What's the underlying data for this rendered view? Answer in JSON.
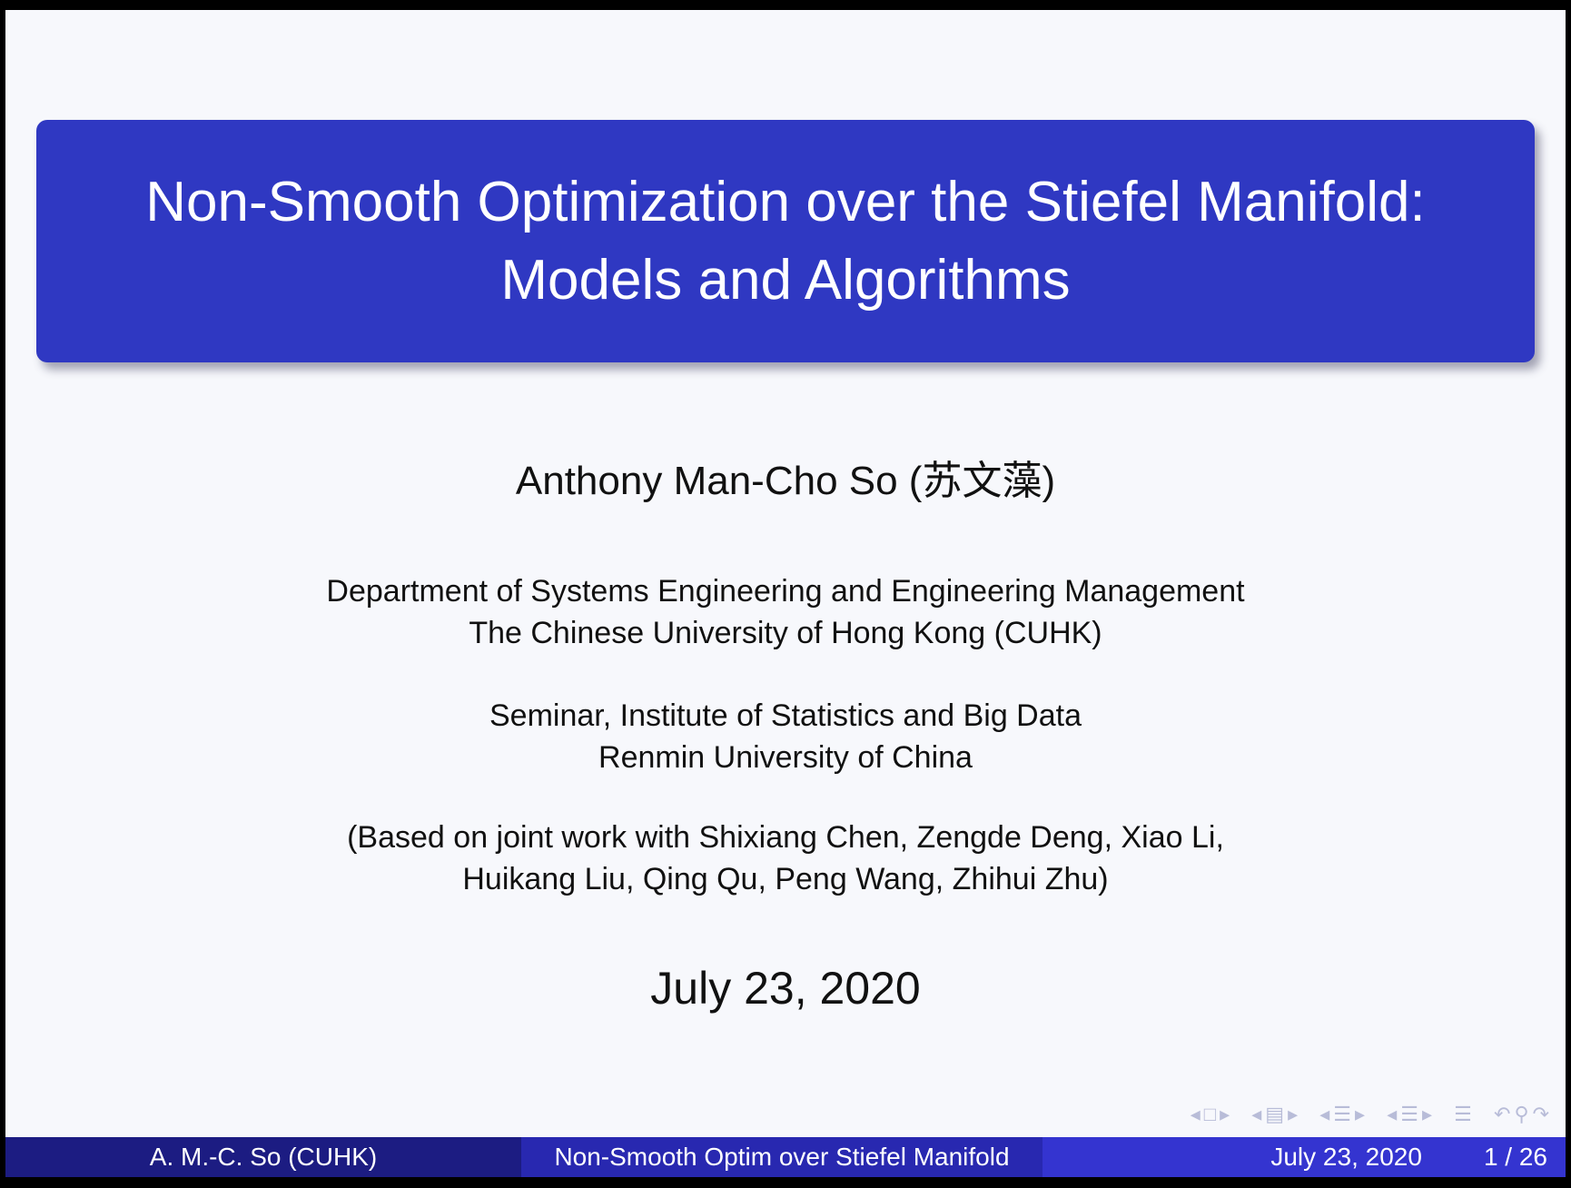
{
  "title": {
    "line1": "Non-Smooth Optimization over the Stiefel Manifold:",
    "line2": "Models and Algorithms"
  },
  "author": "Anthony Man-Cho So (苏文藻)",
  "affiliation": {
    "line1": "Department of Systems Engineering and Engineering Management",
    "line2": "The Chinese University of Hong Kong (CUHK)"
  },
  "venue": {
    "line1": "Seminar, Institute of Statistics and Big Data",
    "line2": "Renmin University of China"
  },
  "joint_work": {
    "line1": "(Based on joint work with Shixiang Chen, Zengde Deng, Xiao Li,",
    "line2": "Huikang Liu, Qing Qu, Peng Wang, Zhihui Zhu)"
  },
  "date": "July 23, 2020",
  "nav_icons": [
    "frame-nav-icon",
    "subsection-nav-icon",
    "section-nav-icon",
    "document-nav-icon",
    "outline-icon",
    "back-icon",
    "search-icon",
    "forward-icon"
  ],
  "footer": {
    "author": "A. M.-C. So  (CUHK)",
    "short_title": "Non-Smooth Optim over Stiefel Manifold",
    "date": "July 23, 2020",
    "page": "1 / 26"
  },
  "colors": {
    "title_box": "#2f38c2",
    "footer_left": "#1c1c82",
    "footer_mid": "#2828b0",
    "footer_right": "#3434d0"
  }
}
